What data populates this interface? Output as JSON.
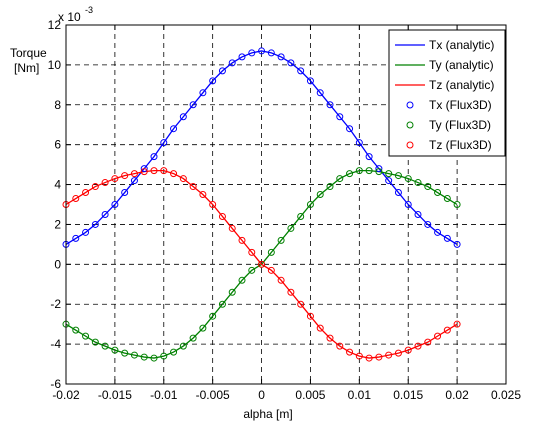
{
  "chart_data": {
    "type": "line",
    "title": "",
    "xlabel": "alpha [m]",
    "ylabel": [
      "Torque",
      "[Nm]"
    ],
    "y_multiplier": "x 10",
    "y_exponent": "-3",
    "xlim": [
      -0.02,
      0.025
    ],
    "ylim": [
      -6,
      12
    ],
    "x_ticks": [
      -0.02,
      -0.015,
      -0.01,
      -0.005,
      0,
      0.005,
      0.01,
      0.015,
      0.02,
      0.025
    ],
    "x_tick_labels": [
      "-0.02",
      "-0.015",
      "-0.01",
      "-0.005",
      "0",
      "0.005",
      "0.01",
      "0.015",
      "0.02",
      "0.025"
    ],
    "y_ticks": [
      -6,
      -4,
      -2,
      0,
      2,
      4,
      6,
      8,
      10,
      12
    ],
    "y_tick_labels": [
      "-6",
      "-4",
      "-2",
      "0",
      "2",
      "4",
      "6",
      "8",
      "10",
      "12"
    ],
    "grid": true,
    "legend_position": "top-right",
    "x": [
      -0.02,
      -0.019,
      -0.018,
      -0.017,
      -0.016,
      -0.015,
      -0.014,
      -0.013,
      -0.012,
      -0.011,
      -0.01,
      -0.009,
      -0.008,
      -0.007,
      -0.006,
      -0.005,
      -0.004,
      -0.003,
      -0.002,
      -0.001,
      0,
      0.001,
      0.002,
      0.003,
      0.004,
      0.005,
      0.006,
      0.007,
      0.008,
      0.009,
      0.01,
      0.011,
      0.012,
      0.013,
      0.014,
      0.015,
      0.016,
      0.017,
      0.018,
      0.019,
      0.02
    ],
    "series": [
      {
        "name": "Tx (analytic)",
        "style": "line",
        "color": "#0000ff",
        "values": [
          1.0,
          1.3,
          1.6,
          2.0,
          2.5,
          3.0,
          3.6,
          4.2,
          4.8,
          5.4,
          6.1,
          6.8,
          7.4,
          8.0,
          8.6,
          9.2,
          9.7,
          10.1,
          10.4,
          10.6,
          10.7,
          10.6,
          10.4,
          10.1,
          9.7,
          9.2,
          8.6,
          8.0,
          7.4,
          6.8,
          6.1,
          5.4,
          4.8,
          4.2,
          3.6,
          3.0,
          2.5,
          2.0,
          1.6,
          1.3,
          1.0
        ]
      },
      {
        "name": "Ty (analytic)",
        "style": "line",
        "color": "#008000",
        "values": [
          -3.0,
          -3.3,
          -3.6,
          -3.9,
          -4.1,
          -4.3,
          -4.45,
          -4.55,
          -4.65,
          -4.7,
          -4.6,
          -4.4,
          -4.1,
          -3.7,
          -3.2,
          -2.6,
          -2.0,
          -1.4,
          -0.8,
          -0.3,
          0.0,
          0.6,
          1.2,
          1.8,
          2.4,
          3.0,
          3.5,
          3.9,
          4.3,
          4.55,
          4.7,
          4.7,
          4.65,
          4.55,
          4.45,
          4.3,
          4.1,
          3.9,
          3.6,
          3.3,
          3.0
        ]
      },
      {
        "name": "Tz (analytic)",
        "style": "line",
        "color": "#ff0000",
        "values": [
          3.0,
          3.3,
          3.6,
          3.9,
          4.1,
          4.3,
          4.45,
          4.55,
          4.65,
          4.7,
          4.7,
          4.55,
          4.3,
          3.9,
          3.5,
          3.0,
          2.4,
          1.8,
          1.2,
          0.6,
          0.0,
          -0.3,
          -0.8,
          -1.4,
          -2.0,
          -2.6,
          -3.2,
          -3.7,
          -4.1,
          -4.4,
          -4.6,
          -4.7,
          -4.65,
          -4.55,
          -4.45,
          -4.3,
          -4.1,
          -3.9,
          -3.6,
          -3.3,
          -3.0
        ]
      },
      {
        "name": "Tx (Flux3D)",
        "style": "marker",
        "color": "#0000ff",
        "values": [
          1.0,
          1.3,
          1.6,
          2.0,
          2.5,
          3.0,
          3.6,
          4.2,
          4.8,
          5.4,
          6.1,
          6.8,
          7.4,
          8.0,
          8.6,
          9.2,
          9.7,
          10.1,
          10.4,
          10.6,
          10.7,
          10.6,
          10.4,
          10.1,
          9.7,
          9.2,
          8.6,
          8.0,
          7.4,
          6.8,
          6.1,
          5.4,
          4.8,
          4.2,
          3.6,
          3.0,
          2.5,
          2.0,
          1.6,
          1.3,
          1.0
        ]
      },
      {
        "name": "Ty (Flux3D)",
        "style": "marker",
        "color": "#008000",
        "values": [
          -3.0,
          -3.3,
          -3.6,
          -3.9,
          -4.1,
          -4.3,
          -4.45,
          -4.55,
          -4.65,
          -4.7,
          -4.6,
          -4.4,
          -4.1,
          -3.7,
          -3.2,
          -2.6,
          -2.0,
          -1.4,
          -0.8,
          -0.3,
          0.0,
          0.6,
          1.2,
          1.8,
          2.4,
          3.0,
          3.5,
          3.9,
          4.3,
          4.55,
          4.7,
          4.7,
          4.65,
          4.55,
          4.45,
          4.3,
          4.1,
          3.9,
          3.6,
          3.3,
          3.0
        ]
      },
      {
        "name": "Tz (Flux3D)",
        "style": "marker",
        "color": "#ff0000",
        "values": [
          3.0,
          3.3,
          3.6,
          3.9,
          4.1,
          4.3,
          4.45,
          4.55,
          4.65,
          4.7,
          4.7,
          4.55,
          4.3,
          3.9,
          3.5,
          3.0,
          2.4,
          1.8,
          1.2,
          0.6,
          0.0,
          -0.3,
          -0.8,
          -1.4,
          -2.0,
          -2.6,
          -3.2,
          -3.7,
          -4.1,
          -4.4,
          -4.6,
          -4.7,
          -4.65,
          -4.55,
          -4.45,
          -4.3,
          -4.1,
          -3.9,
          -3.6,
          -3.3,
          -3.0
        ]
      }
    ]
  }
}
